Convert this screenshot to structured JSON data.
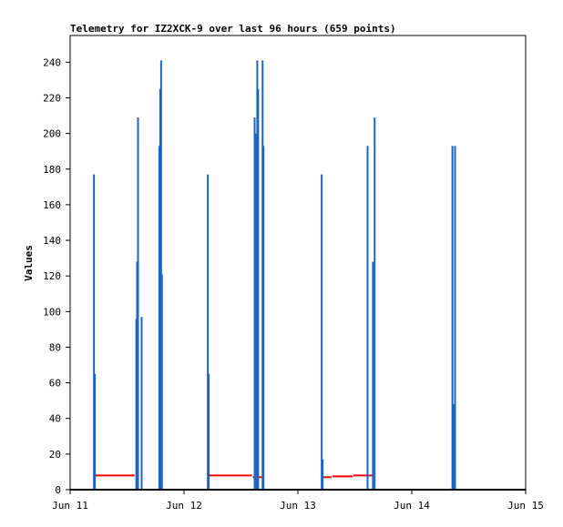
{
  "chart_data": {
    "type": "bar",
    "title": "Telemetry for IZ2XCK-9 over last 96 hours (659 points)",
    "xlabel": "",
    "ylabel": "Values",
    "x_ticks": [
      "Jun 11",
      "Jun 12",
      "Jun 13",
      "Jun 14",
      "Jun 15"
    ],
    "xlim_days": [
      11,
      15
    ],
    "ylim": [
      0,
      255
    ],
    "y_ticks": [
      0,
      20,
      40,
      60,
      80,
      100,
      120,
      140,
      160,
      180,
      200,
      220,
      240
    ],
    "grid": false,
    "colors": {
      "series_bars": "#1a66c2",
      "series_line": "#ff0000",
      "baseline": "#000000"
    },
    "series": [
      {
        "kind": "bars",
        "points": [
          {
            "x": 11.209,
            "y": 177
          },
          {
            "x": 11.217,
            "y": 65
          },
          {
            "x": 11.581,
            "y": 96
          },
          {
            "x": 11.588,
            "y": 128
          },
          {
            "x": 11.596,
            "y": 209
          },
          {
            "x": 11.628,
            "y": 97
          },
          {
            "x": 11.783,
            "y": 193
          },
          {
            "x": 11.791,
            "y": 225
          },
          {
            "x": 11.799,
            "y": 241
          },
          {
            "x": 11.806,
            "y": 121
          },
          {
            "x": 12.209,
            "y": 177
          },
          {
            "x": 12.217,
            "y": 65
          },
          {
            "x": 12.62,
            "y": 209
          },
          {
            "x": 12.628,
            "y": 200
          },
          {
            "x": 12.636,
            "y": 40
          },
          {
            "x": 12.643,
            "y": 241
          },
          {
            "x": 12.651,
            "y": 225
          },
          {
            "x": 12.69,
            "y": 241
          },
          {
            "x": 12.698,
            "y": 193
          },
          {
            "x": 13.209,
            "y": 177
          },
          {
            "x": 13.217,
            "y": 17
          },
          {
            "x": 13.612,
            "y": 193
          },
          {
            "x": 13.659,
            "y": 128
          },
          {
            "x": 13.674,
            "y": 209
          },
          {
            "x": 14.357,
            "y": 193
          },
          {
            "x": 14.364,
            "y": 48
          },
          {
            "x": 14.38,
            "y": 193
          }
        ]
      },
      {
        "kind": "line",
        "segments": [
          {
            "x": [
              11.202,
              11.566
            ],
            "y": 8
          },
          {
            "x": [
              12.209,
              12.597
            ],
            "y": 8
          },
          {
            "x": [
              12.605,
              12.69
            ],
            "y": 7
          },
          {
            "x": [
              13.217,
              13.295
            ],
            "y": 7
          },
          {
            "x": [
              13.302,
              13.481
            ],
            "y": 7.5
          },
          {
            "x": [
              13.488,
              13.659
            ],
            "y": 8
          }
        ]
      }
    ]
  }
}
